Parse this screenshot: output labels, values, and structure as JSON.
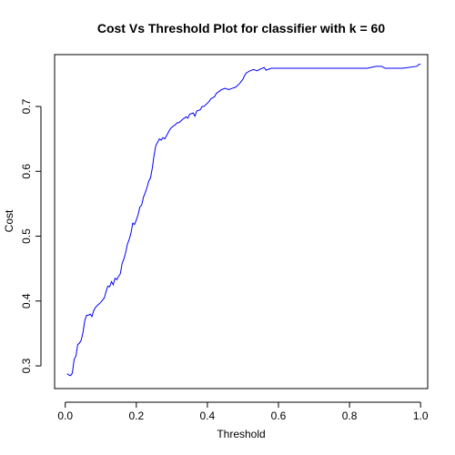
{
  "chart_data": {
    "type": "line",
    "title": "Cost Vs Threshold Plot for classifier with k = 60",
    "xlabel": "Threshold",
    "ylabel": "Cost",
    "xlim": [
      -0.03,
      1.02
    ],
    "ylim": [
      0.265,
      0.78
    ],
    "xticks": [
      "0.0",
      "0.2",
      "0.4",
      "0.6",
      "0.8",
      "1.0"
    ],
    "yticks": [
      "0.3",
      "0.4",
      "0.5",
      "0.6",
      "0.7"
    ],
    "grid": false,
    "legend": "none",
    "line_color": "#0000ff",
    "series": [
      {
        "x": [
          0.005,
          0.01,
          0.015,
          0.02,
          0.025,
          0.03,
          0.035,
          0.04,
          0.045,
          0.05,
          0.055,
          0.06,
          0.065,
          0.07,
          0.075,
          0.08,
          0.085,
          0.09,
          0.1,
          0.11,
          0.115,
          0.12,
          0.125,
          0.13,
          0.135,
          0.14,
          0.145,
          0.15,
          0.155,
          0.16,
          0.165,
          0.17,
          0.175,
          0.18,
          0.185,
          0.19,
          0.195,
          0.2,
          0.205,
          0.21,
          0.215,
          0.22,
          0.225,
          0.23,
          0.235,
          0.24,
          0.245,
          0.25,
          0.255,
          0.26,
          0.265,
          0.27,
          0.275,
          0.28,
          0.285,
          0.29,
          0.295,
          0.3,
          0.305,
          0.31,
          0.315,
          0.32,
          0.33,
          0.34,
          0.345,
          0.35,
          0.36,
          0.365,
          0.37,
          0.38,
          0.385,
          0.39,
          0.4,
          0.405,
          0.41,
          0.42,
          0.425,
          0.43,
          0.44,
          0.45,
          0.46,
          0.47,
          0.48,
          0.49,
          0.5,
          0.505,
          0.51,
          0.52,
          0.53,
          0.54,
          0.55,
          0.56,
          0.565,
          0.57,
          0.58,
          0.6,
          0.65,
          0.7,
          0.75,
          0.8,
          0.85,
          0.875,
          0.88,
          0.89,
          0.9,
          0.95,
          0.99,
          0.995,
          1.0
        ],
        "y": [
          0.288,
          0.286,
          0.285,
          0.289,
          0.31,
          0.315,
          0.333,
          0.335,
          0.34,
          0.352,
          0.37,
          0.378,
          0.378,
          0.38,
          0.376,
          0.385,
          0.39,
          0.393,
          0.398,
          0.405,
          0.415,
          0.423,
          0.422,
          0.43,
          0.425,
          0.435,
          0.433,
          0.438,
          0.442,
          0.458,
          0.465,
          0.475,
          0.488,
          0.495,
          0.505,
          0.52,
          0.518,
          0.525,
          0.533,
          0.545,
          0.548,
          0.56,
          0.567,
          0.575,
          0.585,
          0.59,
          0.605,
          0.625,
          0.64,
          0.645,
          0.65,
          0.648,
          0.652,
          0.65,
          0.655,
          0.66,
          0.665,
          0.668,
          0.67,
          0.672,
          0.675,
          0.675,
          0.68,
          0.684,
          0.682,
          0.688,
          0.69,
          0.685,
          0.693,
          0.695,
          0.7,
          0.7,
          0.705,
          0.708,
          0.712,
          0.715,
          0.72,
          0.722,
          0.726,
          0.728,
          0.726,
          0.728,
          0.73,
          0.735,
          0.742,
          0.748,
          0.752,
          0.755,
          0.757,
          0.755,
          0.758,
          0.76,
          0.756,
          0.757,
          0.759,
          0.759,
          0.759,
          0.759,
          0.759,
          0.759,
          0.759,
          0.762,
          0.762,
          0.762,
          0.759,
          0.759,
          0.762,
          0.765,
          0.765
        ]
      }
    ]
  }
}
